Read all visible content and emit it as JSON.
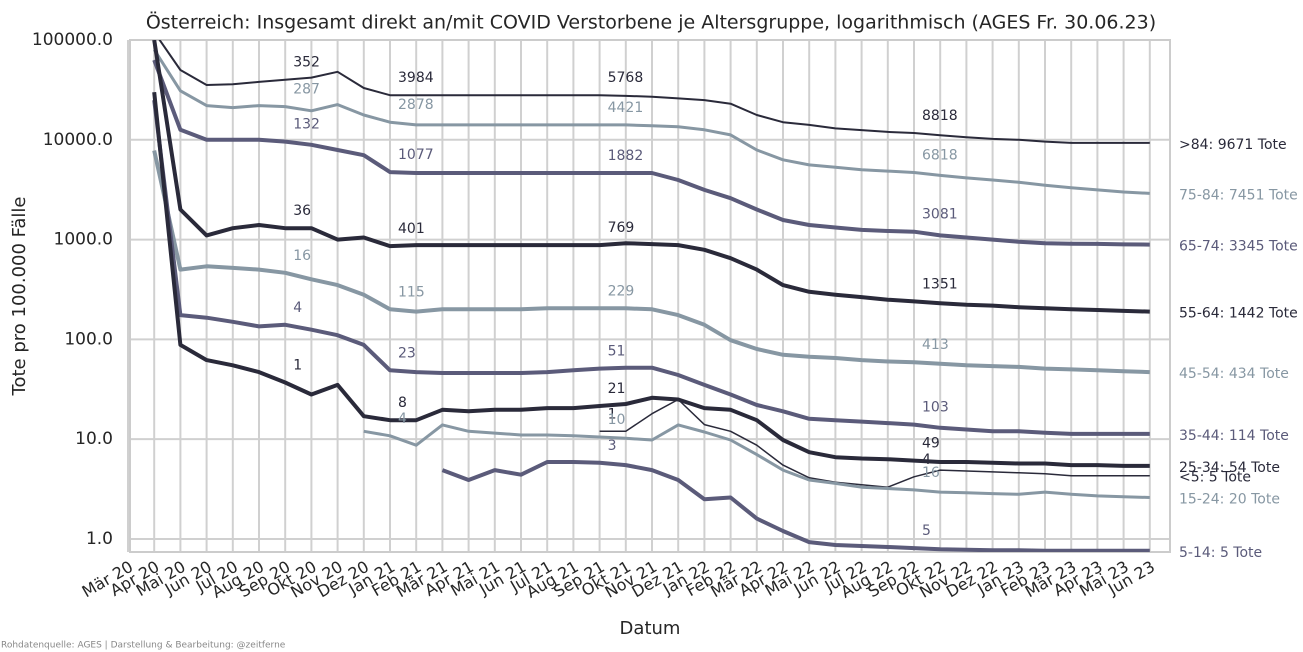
{
  "chart_data": {
    "type": "line",
    "title": "Österreich: Insgesamt direkt an/mit COVID Verstorbene je Altersgruppe, logarithmisch (AGES Fr. 30.06.23)",
    "x_label": "Datum",
    "y_label": "Tote pro 100.000 Fälle",
    "source": "Rohdatenquelle: AGES | Darstellung & Bearbeitung: @zeitferne",
    "log_scale": true,
    "grid": true,
    "ylim": [
      0.74,
      100000
    ],
    "yticks": [
      {
        "value": 1,
        "label": "1.0"
      },
      {
        "value": 10,
        "label": "10.0"
      },
      {
        "value": 100,
        "label": "100.0"
      },
      {
        "value": 1000,
        "label": "1000.0"
      },
      {
        "value": 10000,
        "label": "10000.0"
      },
      {
        "value": 100000,
        "label": "100000.0"
      }
    ],
    "categories": [
      "Mär 20",
      "Apr 20",
      "Mai 20",
      "Jun 20",
      "Jul 20",
      "Aug 20",
      "Sep 20",
      "Okt 20",
      "Nov 20",
      "Dez 20",
      "Jan 21",
      "Feb 21",
      "Mär 21",
      "Apr 21",
      "Mai 21",
      "Jun 21",
      "Jul 21",
      "Aug 21",
      "Sep 21",
      "Okt 21",
      "Nov 21",
      "Dez 21",
      "Jan 22",
      "Feb 22",
      "Mär 22",
      "Apr 22",
      "Mai 22",
      "Jun 22",
      "Jul 22",
      "Aug 22",
      "Sep 22",
      "Okt 22",
      "Nov 22",
      "Dez 22",
      "Jan 23",
      "Feb 23",
      "Mär 23",
      "Apr 23",
      "Mai 23",
      "Jun 23"
    ],
    "series": [
      {
        "name": ">84: 9671 Tote",
        "color": "#2a2a3a",
        "linewidth": 2,
        "values": [
          null,
          120000,
          50000,
          35400,
          36000,
          38000,
          40000,
          42000,
          48000,
          33000,
          28000,
          28000,
          28000,
          28000,
          28000,
          28000,
          28000,
          28000,
          28000,
          27500,
          27000,
          26000,
          25000,
          23000,
          17700,
          15000,
          14100,
          13000,
          12500,
          12000,
          11700,
          11100,
          10600,
          10200,
          10000,
          9600,
          9300,
          9300,
          9300,
          9300
        ],
        "annotations": [
          {
            "category": "Sep 20",
            "text": "352"
          },
          {
            "category": "Jan 21",
            "text": "3984"
          },
          {
            "category": "Sep 21",
            "text": "5768"
          },
          {
            "category": "Sep 22",
            "text": "8818"
          }
        ]
      },
      {
        "name": "75-84: 7451 Tote",
        "color": "#8797a3",
        "linewidth": 3,
        "values": [
          null,
          80000,
          31000,
          22000,
          21000,
          22000,
          21500,
          19500,
          22500,
          17700,
          15000,
          14100,
          14100,
          14100,
          14100,
          14100,
          14100,
          14100,
          14100,
          14100,
          13800,
          13500,
          12600,
          11200,
          7900,
          6300,
          5600,
          5300,
          5000,
          4850,
          4700,
          4400,
          4150,
          3950,
          3750,
          3500,
          3300,
          3150,
          3000,
          2900
        ],
        "annotations": [
          {
            "category": "Sep 20",
            "text": "287"
          },
          {
            "category": "Jan 21",
            "text": "2878"
          },
          {
            "category": "Sep 21",
            "text": "4421"
          },
          {
            "category": "Sep 22",
            "text": "6818"
          }
        ]
      },
      {
        "name": "65-74: 3345 Tote",
        "color": "#5b5b7a",
        "linewidth": 4,
        "values": [
          null,
          63000,
          12600,
          10000,
          10000,
          10000,
          9600,
          8900,
          7900,
          7000,
          4750,
          4650,
          4650,
          4650,
          4650,
          4650,
          4650,
          4650,
          4650,
          4650,
          4650,
          3950,
          3150,
          2600,
          2000,
          1570,
          1400,
          1320,
          1250,
          1220,
          1200,
          1100,
          1050,
          1000,
          950,
          920,
          910,
          905,
          895,
          890
        ],
        "annotations": [
          {
            "category": "Sep 20",
            "text": "132"
          },
          {
            "category": "Jan 21",
            "text": "1077"
          },
          {
            "category": "Sep 21",
            "text": "1882"
          },
          {
            "category": "Sep 22",
            "text": "3081"
          }
        ]
      },
      {
        "name": "55-64: 1442 Tote",
        "color": "#2a2a3a",
        "linewidth": 4,
        "values": [
          null,
          100000,
          2000,
          1100,
          1300,
          1400,
          1300,
          1300,
          1000,
          1050,
          860,
          880,
          880,
          880,
          880,
          880,
          880,
          880,
          880,
          920,
          900,
          880,
          790,
          650,
          500,
          350,
          300,
          280,
          265,
          250,
          240,
          230,
          222,
          218,
          210,
          205,
          200,
          197,
          193,
          190
        ],
        "annotations": [
          {
            "category": "Sep 20",
            "text": "36"
          },
          {
            "category": "Jan 21",
            "text": "401"
          },
          {
            "category": "Sep 21",
            "text": "769"
          },
          {
            "category": "Sep 22",
            "text": "1351"
          }
        ]
      },
      {
        "name": "45-54: 434 Tote",
        "color": "#8797a3",
        "linewidth": 4,
        "values": [
          null,
          7800,
          500,
          540,
          520,
          500,
          465,
          400,
          350,
          280,
          200,
          190,
          200,
          200,
          200,
          200,
          205,
          205,
          205,
          205,
          200,
          175,
          140,
          98,
          80,
          70,
          67,
          65,
          62,
          60,
          59,
          57,
          55,
          54,
          53,
          51,
          50,
          49,
          48,
          47
        ],
        "annotations": [
          {
            "category": "Sep 20",
            "text": "16"
          },
          {
            "category": "Jan 21",
            "text": "115"
          },
          {
            "category": "Sep 21",
            "text": "229"
          },
          {
            "category": "Sep 22",
            "text": "413"
          }
        ]
      },
      {
        "name": "35-44: 114 Tote",
        "color": "#5b5b7a",
        "linewidth": 4,
        "values": [
          null,
          25000,
          175,
          165,
          150,
          135,
          140,
          125,
          110,
          88,
          49,
          47,
          46,
          46,
          46,
          46,
          47,
          49,
          51,
          52,
          52,
          44,
          35,
          28,
          22,
          19,
          16,
          15.5,
          15,
          14.5,
          14,
          13,
          12.5,
          12,
          12,
          11.6,
          11.3,
          11.3,
          11.3,
          11.3
        ],
        "annotations": [
          {
            "category": "Sep 20",
            "text": "4"
          },
          {
            "category": "Jan 21",
            "text": "23"
          },
          {
            "category": "Sep 21",
            "text": "51"
          },
          {
            "category": "Sep 22",
            "text": "103"
          }
        ]
      },
      {
        "name": "25-34: 54 Tote",
        "color": "#2a2a3a",
        "linewidth": 4,
        "values": [
          null,
          30000,
          88,
          62,
          55,
          47,
          37,
          28,
          35,
          17,
          15.5,
          15.5,
          19.7,
          19,
          19.7,
          19.7,
          20.5,
          20.5,
          21.5,
          22.5,
          26,
          25,
          20.5,
          19.7,
          15.5,
          9.8,
          7.4,
          6.6,
          6.4,
          6.3,
          6.1,
          5.9,
          5.9,
          5.8,
          5.7,
          5.7,
          5.5,
          5.5,
          5.4,
          5.4
        ],
        "annotations": [
          {
            "category": "Sep 20",
            "text": "1"
          },
          {
            "category": "Jan 21",
            "text": "8"
          },
          {
            "category": "Sep 21",
            "text": "21"
          },
          {
            "category": "Sep 22",
            "text": "49"
          }
        ]
      },
      {
        "name": "<5: 5 Tote",
        "color": "#2a2a3a",
        "linewidth": 1.5,
        "values": [
          null,
          null,
          null,
          null,
          null,
          null,
          null,
          null,
          null,
          null,
          null,
          null,
          null,
          null,
          null,
          null,
          null,
          null,
          12,
          12,
          18,
          25,
          14,
          12,
          8.7,
          5.5,
          4.1,
          3.7,
          3.5,
          3.3,
          4.2,
          4.9,
          4.8,
          4.7,
          4.6,
          4.5,
          4.3,
          4.3,
          4.3,
          4.3
        ],
        "annotations": [
          {
            "category": "Sep 21",
            "text": "1"
          },
          {
            "category": "Sep 22",
            "text": "4"
          }
        ]
      },
      {
        "name": "15-24: 20 Tote",
        "color": "#8797a3",
        "linewidth": 3,
        "values": [
          null,
          null,
          null,
          null,
          null,
          null,
          null,
          null,
          null,
          12,
          10.8,
          8.7,
          13.9,
          12,
          11.5,
          11,
          11,
          10.8,
          10.5,
          10.2,
          9.8,
          13.9,
          11.8,
          9.8,
          7,
          4.9,
          3.9,
          3.6,
          3.3,
          3.2,
          3.1,
          2.95,
          2.9,
          2.85,
          2.8,
          2.95,
          2.8,
          2.7,
          2.65,
          2.6
        ],
        "annotations": [
          {
            "category": "Jan 21",
            "text": "4"
          },
          {
            "category": "Sep 21",
            "text": "10"
          },
          {
            "category": "Sep 22",
            "text": "16"
          }
        ]
      },
      {
        "name": "5-14: 5 Tote",
        "color": "#5b5b7a",
        "linewidth": 4,
        "values": [
          null,
          null,
          null,
          null,
          null,
          null,
          null,
          null,
          null,
          null,
          null,
          null,
          4.9,
          3.9,
          4.9,
          4.4,
          5.9,
          5.9,
          5.8,
          5.5,
          4.9,
          3.9,
          2.5,
          2.6,
          1.6,
          1.2,
          0.93,
          0.87,
          0.85,
          0.83,
          0.81,
          0.79,
          0.78,
          0.77,
          0.77,
          0.76,
          0.76,
          0.76,
          0.76,
          0.76
        ],
        "annotations": [
          {
            "category": "Sep 21",
            "text": "3"
          },
          {
            "category": "Sep 22",
            "text": "5"
          }
        ]
      }
    ]
  }
}
